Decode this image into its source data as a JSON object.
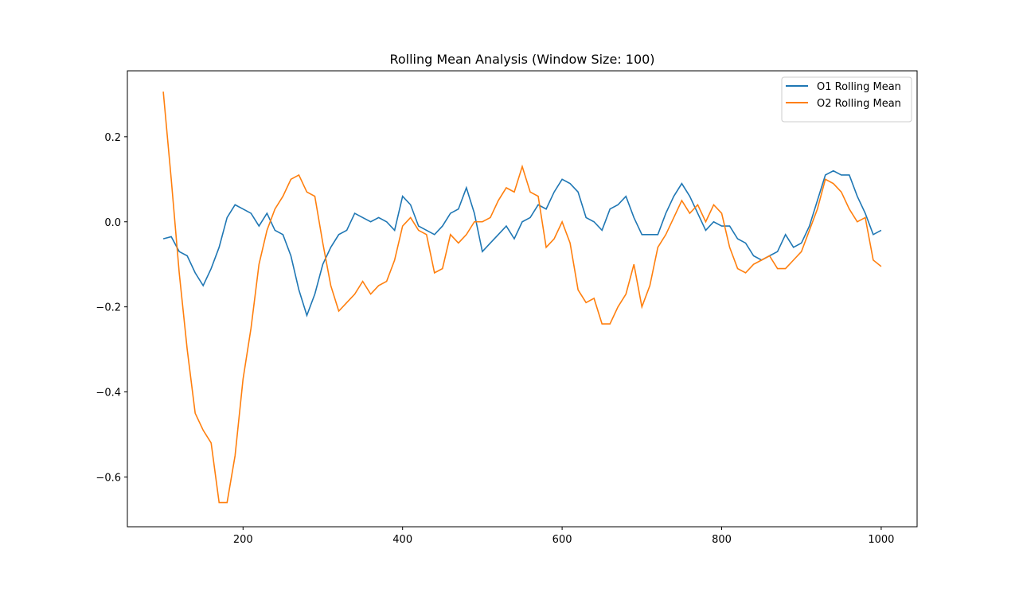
{
  "chart_data": {
    "type": "line",
    "title": "Rolling Mean Analysis (Window Size: 100)",
    "x": [
      100,
      110,
      120,
      130,
      140,
      150,
      160,
      170,
      180,
      190,
      200,
      210,
      220,
      230,
      240,
      250,
      260,
      270,
      280,
      290,
      300,
      310,
      320,
      330,
      340,
      350,
      360,
      370,
      380,
      390,
      400,
      410,
      420,
      430,
      440,
      450,
      460,
      470,
      480,
      490,
      500,
      510,
      520,
      530,
      540,
      550,
      560,
      570,
      580,
      590,
      600,
      610,
      620,
      630,
      640,
      650,
      660,
      670,
      680,
      690,
      700,
      710,
      720,
      730,
      740,
      750,
      760,
      770,
      780,
      790,
      800,
      810,
      820,
      830,
      840,
      850,
      860,
      870,
      880,
      890,
      900,
      910,
      920,
      930,
      940,
      950,
      960,
      970,
      980,
      990,
      1000
    ],
    "series": [
      {
        "name": "O1 Rolling Mean",
        "color": "#1f77b4",
        "values": [
          -0.04,
          -0.035,
          -0.07,
          -0.08,
          -0.12,
          -0.15,
          -0.11,
          -0.06,
          0.01,
          0.04,
          0.03,
          0.02,
          -0.01,
          0.02,
          -0.02,
          -0.03,
          -0.08,
          -0.16,
          -0.22,
          -0.17,
          -0.1,
          -0.06,
          -0.03,
          -0.02,
          0.02,
          0.01,
          0.0,
          0.01,
          0.0,
          -0.02,
          0.06,
          0.04,
          -0.01,
          -0.02,
          -0.03,
          -0.01,
          0.02,
          0.03,
          0.08,
          0.02,
          -0.07,
          -0.05,
          -0.03,
          -0.01,
          -0.04,
          0.0,
          0.01,
          0.04,
          0.03,
          0.07,
          0.1,
          0.09,
          0.07,
          0.01,
          0.0,
          -0.02,
          0.03,
          0.04,
          0.06,
          0.01,
          -0.03,
          -0.03,
          -0.03,
          0.02,
          0.06,
          0.09,
          0.06,
          0.02,
          -0.02,
          0.0,
          -0.01,
          -0.01,
          -0.04,
          -0.05,
          -0.08,
          -0.09,
          -0.08,
          -0.07,
          -0.03,
          -0.06,
          -0.05,
          -0.01,
          0.05,
          0.11,
          0.12,
          0.11,
          0.11,
          0.06,
          0.02,
          -0.03,
          -0.02
        ]
      },
      {
        "name": "O2 Rolling Mean",
        "color": "#ff7f0e",
        "values": [
          0.306,
          0.1,
          -0.12,
          -0.3,
          -0.45,
          -0.49,
          -0.52,
          -0.66,
          -0.66,
          -0.55,
          -0.37,
          -0.25,
          -0.1,
          -0.02,
          0.03,
          0.06,
          0.1,
          0.11,
          0.07,
          0.06,
          -0.05,
          -0.15,
          -0.21,
          -0.19,
          -0.17,
          -0.14,
          -0.17,
          -0.15,
          -0.14,
          -0.09,
          -0.01,
          0.01,
          -0.02,
          -0.03,
          -0.12,
          -0.11,
          -0.03,
          -0.05,
          -0.03,
          0.0,
          0.0,
          0.01,
          0.05,
          0.08,
          0.07,
          0.13,
          0.07,
          0.06,
          -0.06,
          -0.04,
          0.0,
          -0.05,
          -0.16,
          -0.19,
          -0.18,
          -0.24,
          -0.24,
          -0.2,
          -0.17,
          -0.1,
          -0.2,
          -0.15,
          -0.06,
          -0.03,
          0.01,
          0.05,
          0.02,
          0.04,
          0.0,
          0.04,
          0.02,
          -0.06,
          -0.11,
          -0.12,
          -0.1,
          -0.09,
          -0.08,
          -0.11,
          -0.11,
          -0.09,
          -0.07,
          -0.02,
          0.03,
          0.1,
          0.09,
          0.07,
          0.03,
          0.0,
          0.01,
          -0.09,
          -0.105
        ]
      }
    ],
    "xlim": [
      55,
      1045
    ],
    "ylim": [
      -0.717,
      0.355
    ],
    "xticks": [
      200,
      400,
      600,
      800,
      1000
    ],
    "yticks": [
      {
        "value": -0.6,
        "label": "−0.6"
      },
      {
        "value": -0.4,
        "label": "−0.4"
      },
      {
        "value": -0.2,
        "label": "−0.2"
      },
      {
        "value": 0,
        "label": "0.0"
      },
      0.2
    ],
    "legend": "upper right"
  }
}
